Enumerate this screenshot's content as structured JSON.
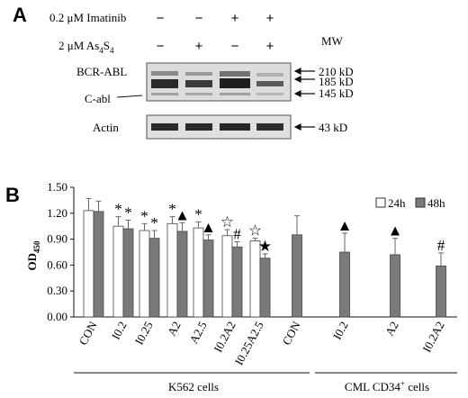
{
  "figure": {
    "panel_a_letter": "A",
    "panel_b_letter": "B"
  },
  "blot": {
    "treatment_labels": [
      {
        "prefix": "0.2  μM Imatinib",
        "sub": "",
        "suffix": ""
      },
      {
        "prefix": "2  μM As",
        "sub": "4",
        "mid": "S",
        "sub2": "4"
      }
    ],
    "treatment_signs": [
      [
        "−",
        "−",
        "+",
        "+"
      ],
      [
        "−",
        "+",
        "−",
        "+"
      ]
    ],
    "mw_label": "MW",
    "band_labels": [
      "BCR-ABL",
      "C-abl",
      "Actin"
    ],
    "marker_labels": [
      "210 kD",
      "185 kD",
      "145 kD",
      "43 kD"
    ]
  },
  "chart_data": {
    "type": "bar",
    "ylabel_main": "OD",
    "ylabel_sub": "450",
    "ylim": [
      0.0,
      1.5
    ],
    "yticks": [
      "0.00",
      "0.30",
      "0.60",
      "0.90",
      "1.20",
      "1.50"
    ],
    "legend": [
      "24h",
      "48h"
    ],
    "legend_position": "top-right",
    "groups": [
      {
        "label": "CON",
        "v24": 1.23,
        "e24": 0.14,
        "v48": 1.22,
        "e48": 0.12,
        "m24": "",
        "m48": ""
      },
      {
        "label": "I0.2",
        "v24": 1.05,
        "e24": 0.11,
        "v48": 1.02,
        "e48": 0.1,
        "m24": "*",
        "m48": "*"
      },
      {
        "label": "I0.25",
        "v24": 1.0,
        "e24": 0.08,
        "v48": 0.91,
        "e48": 0.09,
        "m24": "*",
        "m48": "*"
      },
      {
        "label": "A2",
        "v24": 1.08,
        "e24": 0.08,
        "v48": 0.99,
        "e48": 0.1,
        "m24": "*",
        "m48": "▲"
      },
      {
        "label": "A2.5",
        "v24": 1.03,
        "e24": 0.07,
        "v48": 0.89,
        "e48": 0.06,
        "m24": "*",
        "m48": "▲"
      },
      {
        "label": "I0.2A2",
        "v24": 0.94,
        "e24": 0.07,
        "v48": 0.81,
        "e48": 0.06,
        "m24": "☆",
        "m48": "#"
      },
      {
        "label": "I0.25A2.5",
        "v24": 0.88,
        "e24": 0.03,
        "v48": 0.68,
        "e48": 0.05,
        "m24": "☆",
        "m48": "★"
      },
      {
        "label": "CON",
        "v24": null,
        "e24": null,
        "v48": 0.95,
        "e48": 0.22,
        "m24": "",
        "m48": ""
      },
      {
        "label": "I0.2",
        "v24": null,
        "e24": null,
        "v48": 0.75,
        "e48": 0.22,
        "m24": "",
        "m48": "▲"
      },
      {
        "label": "A2",
        "v24": null,
        "e24": null,
        "v48": 0.72,
        "e48": 0.19,
        "m24": "",
        "m48": "▲"
      },
      {
        "label": "I0.2A2",
        "v24": null,
        "e24": null,
        "v48": 0.59,
        "e48": 0.15,
        "m24": "",
        "m48": "#"
      }
    ],
    "group_labels": [
      {
        "main": "K562 cells",
        "sup": ""
      },
      {
        "main": "CML CD34",
        "sup": "+",
        "tail": " cells"
      }
    ]
  }
}
